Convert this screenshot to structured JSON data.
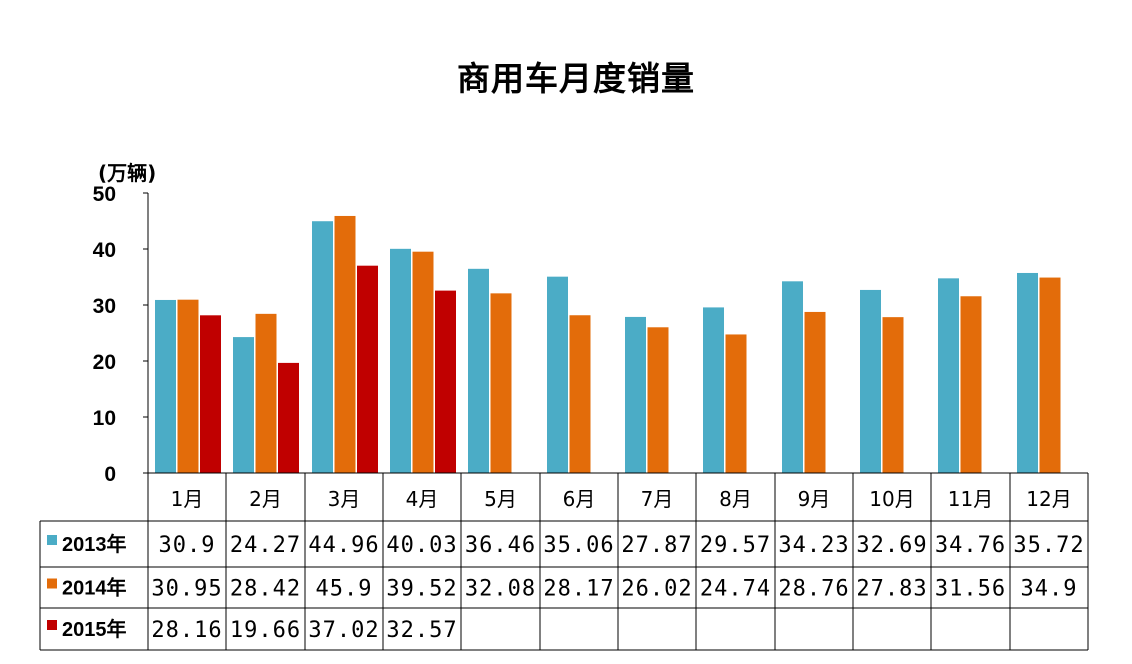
{
  "chart_data": {
    "type": "bar",
    "title": "商用车月度销量",
    "ylabel": "(万辆)",
    "ylim": [
      0,
      50
    ],
    "yticks": [
      "0",
      "10",
      "20",
      "30",
      "40",
      "50"
    ],
    "categories": [
      "1月",
      "2月",
      "3月",
      "4月",
      "5月",
      "6月",
      "7月",
      "8月",
      "9月",
      "10月",
      "11月",
      "12月"
    ],
    "series": [
      {
        "name": "2013年",
        "color": "#4bacc6",
        "values": [
          30.9,
          24.27,
          44.96,
          40.03,
          36.46,
          35.06,
          27.87,
          29.57,
          34.23,
          32.69,
          34.76,
          35.72
        ],
        "labels": [
          "30.9",
          "24.27",
          "44.96",
          "40.03",
          "36.46",
          "35.06",
          "27.87",
          "29.57",
          "34.23",
          "32.69",
          "34.76",
          "35.72"
        ]
      },
      {
        "name": "2014年",
        "color": "#e36c0a",
        "values": [
          30.95,
          28.42,
          45.9,
          39.52,
          32.08,
          28.17,
          26.02,
          24.74,
          28.76,
          27.83,
          31.56,
          34.9
        ],
        "labels": [
          "30.95",
          "28.42",
          "45.9",
          "39.52",
          "32.08",
          "28.17",
          "26.02",
          "24.74",
          "28.76",
          "27.83",
          "31.56",
          "34.9"
        ]
      },
      {
        "name": "2015年",
        "color": "#c00000",
        "values": [
          28.16,
          19.66,
          37.02,
          32.57,
          null,
          null,
          null,
          null,
          null,
          null,
          null,
          null
        ],
        "labels": [
          "28.16",
          "19.66",
          "37.02",
          "32.57",
          "",
          "",
          "",
          "",
          "",
          "",
          "",
          ""
        ]
      }
    ],
    "legend": "data-table-left",
    "grid": false
  }
}
